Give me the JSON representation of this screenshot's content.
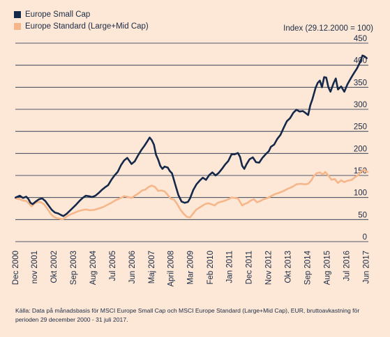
{
  "legend": [
    {
      "label": "Europe Small Cap",
      "color": "#14284a"
    },
    {
      "label": "Europe Standard (Large+Mid Cap)",
      "color": "#f5b68a"
    }
  ],
  "index_note": "Index (29.12.2000 = 100)",
  "source_note": "Källa: Data på månadsbasis för MSCI Europe Small Cap och MSCI Europe Standard (Large+Mid Cap), EUR, bruttoavkastning för perioden 29 december 2000 - 31 juli 2017.",
  "colors": {
    "background": "#fde8d7",
    "small_cap": "#14284a",
    "standard": "#f5b68a",
    "grid": "#1b2a44"
  },
  "chart_data": {
    "type": "line",
    "ylabel": "Index (29.12.2000 = 100)",
    "ylim": [
      0,
      450
    ],
    "yticks": [
      0,
      50,
      100,
      150,
      200,
      250,
      300,
      350,
      400,
      450
    ],
    "xlim": [
      2000.99,
      2017.58
    ],
    "xticks": [
      {
        "label": "Dec 2000",
        "x": 2000.99
      },
      {
        "label": "nov 2001",
        "x": 2001.88
      },
      {
        "label": "Okt 2002",
        "x": 2002.79
      },
      {
        "label": "Sep 2003",
        "x": 2003.71
      },
      {
        "label": "Aug 2004",
        "x": 2004.63
      },
      {
        "label": "Jul 2005",
        "x": 2005.54
      },
      {
        "label": "Jun 2006",
        "x": 2006.46
      },
      {
        "label": "Maj 2007",
        "x": 2007.38
      },
      {
        "label": "April 2008",
        "x": 2008.29
      },
      {
        "label": "Mar 2009",
        "x": 2009.21
      },
      {
        "label": "Feb 2010",
        "x": 2010.13
      },
      {
        "label": "Jan 2011",
        "x": 2011.04
      },
      {
        "label": "Dec 2011",
        "x": 2011.96
      },
      {
        "label": "Nov 2012",
        "x": 2012.88
      },
      {
        "label": "Okt 2013",
        "x": 2013.79
      },
      {
        "label": "Sep 2014",
        "x": 2014.71
      },
      {
        "label": "Aug 2015",
        "x": 2015.63
      },
      {
        "label": "Jul 2016",
        "x": 2016.54
      },
      {
        "label": "Jun 2017",
        "x": 2017.46
      }
    ],
    "grid": true,
    "series": [
      {
        "name": "Europe Small Cap",
        "color": "#14284a",
        "points": [
          [
            2001.0,
            100
          ],
          [
            2001.2,
            104
          ],
          [
            2001.35,
            99
          ],
          [
            2001.5,
            102
          ],
          [
            2001.6,
            97
          ],
          [
            2001.7,
            88
          ],
          [
            2001.8,
            85
          ],
          [
            2001.95,
            91
          ],
          [
            2002.1,
            96
          ],
          [
            2002.25,
            98
          ],
          [
            2002.4,
            92
          ],
          [
            2002.55,
            82
          ],
          [
            2002.7,
            72
          ],
          [
            2002.85,
            66
          ],
          [
            2003.0,
            64
          ],
          [
            2003.15,
            60
          ],
          [
            2003.25,
            58
          ],
          [
            2003.4,
            63
          ],
          [
            2003.55,
            70
          ],
          [
            2003.7,
            77
          ],
          [
            2003.85,
            84
          ],
          [
            2004.0,
            92
          ],
          [
            2004.15,
            99
          ],
          [
            2004.3,
            104
          ],
          [
            2004.45,
            103
          ],
          [
            2004.6,
            101
          ],
          [
            2004.75,
            104
          ],
          [
            2004.9,
            110
          ],
          [
            2005.05,
            117
          ],
          [
            2005.2,
            123
          ],
          [
            2005.35,
            128
          ],
          [
            2005.5,
            140
          ],
          [
            2005.65,
            150
          ],
          [
            2005.8,
            158
          ],
          [
            2005.95,
            173
          ],
          [
            2006.1,
            184
          ],
          [
            2006.25,
            190
          ],
          [
            2006.35,
            183
          ],
          [
            2006.45,
            176
          ],
          [
            2006.6,
            182
          ],
          [
            2006.75,
            195
          ],
          [
            2006.9,
            207
          ],
          [
            2007.05,
            217
          ],
          [
            2007.2,
            228
          ],
          [
            2007.3,
            236
          ],
          [
            2007.4,
            230
          ],
          [
            2007.5,
            220
          ],
          [
            2007.6,
            197
          ],
          [
            2007.7,
            186
          ],
          [
            2007.8,
            172
          ],
          [
            2007.9,
            165
          ],
          [
            2008.0,
            170
          ],
          [
            2008.15,
            168
          ],
          [
            2008.25,
            160
          ],
          [
            2008.35,
            155
          ],
          [
            2008.5,
            130
          ],
          [
            2008.65,
            106
          ],
          [
            2008.8,
            91
          ],
          [
            2008.95,
            88
          ],
          [
            2009.1,
            90
          ],
          [
            2009.2,
            98
          ],
          [
            2009.35,
            117
          ],
          [
            2009.5,
            130
          ],
          [
            2009.65,
            138
          ],
          [
            2009.8,
            145
          ],
          [
            2009.95,
            140
          ],
          [
            2010.1,
            151
          ],
          [
            2010.25,
            157
          ],
          [
            2010.4,
            150
          ],
          [
            2010.55,
            156
          ],
          [
            2010.7,
            165
          ],
          [
            2010.85,
            175
          ],
          [
            2011.0,
            183
          ],
          [
            2011.15,
            198
          ],
          [
            2011.3,
            198
          ],
          [
            2011.45,
            201
          ],
          [
            2011.55,
            192
          ],
          [
            2011.65,
            172
          ],
          [
            2011.75,
            165
          ],
          [
            2011.85,
            175
          ],
          [
            2012.0,
            187
          ],
          [
            2012.15,
            191
          ],
          [
            2012.3,
            180
          ],
          [
            2012.45,
            179
          ],
          [
            2012.6,
            190
          ],
          [
            2012.75,
            198
          ],
          [
            2012.9,
            205
          ],
          [
            2013.0,
            215
          ],
          [
            2013.15,
            220
          ],
          [
            2013.3,
            233
          ],
          [
            2013.45,
            242
          ],
          [
            2013.6,
            258
          ],
          [
            2013.75,
            273
          ],
          [
            2013.9,
            280
          ],
          [
            2014.05,
            292
          ],
          [
            2014.2,
            299
          ],
          [
            2014.35,
            295
          ],
          [
            2014.5,
            296
          ],
          [
            2014.65,
            291
          ],
          [
            2014.75,
            287
          ],
          [
            2014.85,
            309
          ],
          [
            2014.95,
            323
          ],
          [
            2015.1,
            349
          ],
          [
            2015.2,
            360
          ],
          [
            2015.3,
            365
          ],
          [
            2015.4,
            350
          ],
          [
            2015.5,
            373
          ],
          [
            2015.6,
            372
          ],
          [
            2015.7,
            350
          ],
          [
            2015.8,
            340
          ],
          [
            2015.95,
            360
          ],
          [
            2016.05,
            370
          ],
          [
            2016.15,
            345
          ],
          [
            2016.3,
            352
          ],
          [
            2016.45,
            340
          ],
          [
            2016.6,
            357
          ],
          [
            2016.75,
            370
          ],
          [
            2016.9,
            382
          ],
          [
            2017.05,
            393
          ],
          [
            2017.2,
            408
          ],
          [
            2017.3,
            422
          ],
          [
            2017.4,
            420
          ],
          [
            2017.5,
            416
          ]
        ]
      },
      {
        "name": "Europe Standard (Large+Mid Cap)",
        "color": "#f5b68a",
        "points": [
          [
            2001.0,
            98
          ],
          [
            2001.2,
            96
          ],
          [
            2001.35,
            93
          ],
          [
            2001.5,
            92
          ],
          [
            2001.6,
            88
          ],
          [
            2001.75,
            80
          ],
          [
            2001.9,
            87
          ],
          [
            2002.05,
            90
          ],
          [
            2002.2,
            89
          ],
          [
            2002.35,
            84
          ],
          [
            2002.5,
            74
          ],
          [
            2002.65,
            63
          ],
          [
            2002.8,
            56
          ],
          [
            2002.95,
            53
          ],
          [
            2003.1,
            52
          ],
          [
            2003.2,
            50
          ],
          [
            2003.35,
            55
          ],
          [
            2003.5,
            60
          ],
          [
            2003.65,
            63
          ],
          [
            2003.8,
            66
          ],
          [
            2003.95,
            69
          ],
          [
            2004.1,
            71
          ],
          [
            2004.3,
            73
          ],
          [
            2004.5,
            71
          ],
          [
            2004.7,
            72
          ],
          [
            2004.9,
            75
          ],
          [
            2005.1,
            78
          ],
          [
            2005.3,
            83
          ],
          [
            2005.5,
            88
          ],
          [
            2005.7,
            94
          ],
          [
            2005.9,
            98
          ],
          [
            2006.1,
            103
          ],
          [
            2006.3,
            101
          ],
          [
            2006.45,
            99
          ],
          [
            2006.6,
            104
          ],
          [
            2006.8,
            110
          ],
          [
            2006.95,
            116
          ],
          [
            2007.1,
            118
          ],
          [
            2007.25,
            124
          ],
          [
            2007.4,
            127
          ],
          [
            2007.55,
            124
          ],
          [
            2007.7,
            115
          ],
          [
            2007.85,
            116
          ],
          [
            2008.0,
            114
          ],
          [
            2008.15,
            106
          ],
          [
            2008.3,
            97
          ],
          [
            2008.45,
            95
          ],
          [
            2008.6,
            85
          ],
          [
            2008.75,
            72
          ],
          [
            2008.9,
            63
          ],
          [
            2009.05,
            56
          ],
          [
            2009.2,
            55
          ],
          [
            2009.35,
            64
          ],
          [
            2009.5,
            73
          ],
          [
            2009.7,
            79
          ],
          [
            2009.9,
            85
          ],
          [
            2010.05,
            87
          ],
          [
            2010.2,
            85
          ],
          [
            2010.35,
            82
          ],
          [
            2010.5,
            88
          ],
          [
            2010.7,
            91
          ],
          [
            2010.85,
            93
          ],
          [
            2011.0,
            96
          ],
          [
            2011.15,
            100
          ],
          [
            2011.3,
            99
          ],
          [
            2011.45,
            98
          ],
          [
            2011.55,
            90
          ],
          [
            2011.65,
            82
          ],
          [
            2011.75,
            85
          ],
          [
            2011.9,
            88
          ],
          [
            2012.05,
            93
          ],
          [
            2012.2,
            96
          ],
          [
            2012.35,
            89
          ],
          [
            2012.5,
            92
          ],
          [
            2012.65,
            96
          ],
          [
            2012.85,
            99
          ],
          [
            2013.0,
            103
          ],
          [
            2013.2,
            108
          ],
          [
            2013.4,
            111
          ],
          [
            2013.6,
            115
          ],
          [
            2013.8,
            120
          ],
          [
            2014.0,
            124
          ],
          [
            2014.2,
            130
          ],
          [
            2014.4,
            131
          ],
          [
            2014.6,
            130
          ],
          [
            2014.75,
            131
          ],
          [
            2014.9,
            139
          ],
          [
            2015.0,
            148
          ],
          [
            2015.15,
            155
          ],
          [
            2015.3,
            157
          ],
          [
            2015.45,
            152
          ],
          [
            2015.55,
            158
          ],
          [
            2015.7,
            150
          ],
          [
            2015.85,
            140
          ],
          [
            2016.0,
            142
          ],
          [
            2016.15,
            133
          ],
          [
            2016.3,
            139
          ],
          [
            2016.45,
            135
          ],
          [
            2016.6,
            138
          ],
          [
            2016.8,
            140
          ],
          [
            2016.95,
            146
          ],
          [
            2017.1,
            151
          ],
          [
            2017.25,
            160
          ],
          [
            2017.35,
            163
          ],
          [
            2017.45,
            160
          ],
          [
            2017.55,
            158
          ]
        ]
      }
    ]
  }
}
